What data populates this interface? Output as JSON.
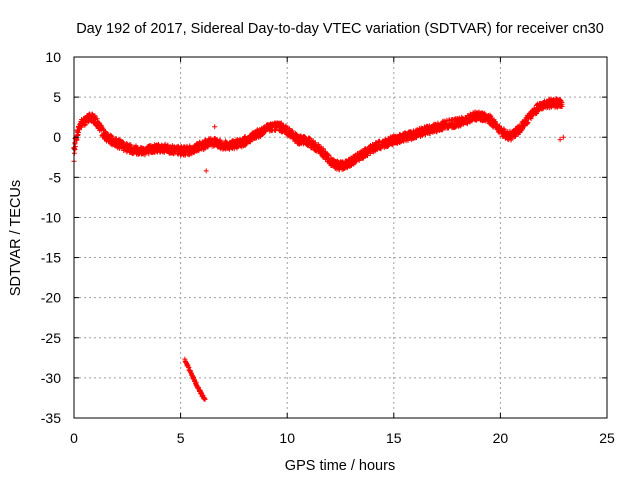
{
  "chart_data": {
    "type": "scatter",
    "title": "Day 192 of 2017, Sidereal Day-to-day VTEC variation (SDTVAR) for receiver cn30",
    "xlabel": "GPS time / hours",
    "ylabel": "SDTVAR / TECUs",
    "xlim": [
      0,
      25
    ],
    "ylim": [
      -35,
      10
    ],
    "grid": true,
    "marker": "+",
    "series_color": "#ff0000",
    "x_ticks": [
      "0",
      "5",
      "10",
      "15",
      "20",
      "25"
    ],
    "y_ticks": [
      "10",
      "5",
      "0",
      "-5",
      "-10",
      "-15",
      "-20",
      "-25",
      "-30",
      "-35"
    ],
    "series": [
      {
        "name": "SDTVAR",
        "bands": [
          {
            "x": [
              0.0,
              0.15,
              0.3,
              0.45,
              0.6,
              0.75,
              0.9,
              1.0,
              1.15,
              1.3,
              1.5,
              1.75,
              2.0,
              2.25,
              2.5,
              2.75,
              3.0,
              3.25,
              3.5,
              3.75,
              4.0,
              4.25,
              4.5,
              4.75,
              5.0,
              5.25,
              5.5,
              5.75,
              6.0,
              6.25,
              6.5,
              6.75,
              7.0,
              7.25,
              7.5,
              7.75,
              8.0,
              8.25,
              8.5,
              8.75,
              9.0,
              9.25,
              9.5,
              9.75,
              10.0,
              10.25,
              10.5,
              10.75,
              11.0,
              11.25,
              11.5,
              11.75,
              12.0,
              12.25,
              12.5,
              12.75,
              13.0,
              13.25,
              13.5,
              13.75,
              14.0,
              14.25,
              14.5,
              14.75,
              15.0,
              15.25,
              15.5,
              15.75,
              16.0,
              16.25,
              16.5,
              16.75,
              17.0,
              17.25,
              17.5,
              17.75,
              18.0,
              18.25,
              18.5,
              18.75,
              19.0,
              19.25,
              19.5,
              19.75,
              20.0,
              20.25,
              20.5,
              20.75,
              21.0,
              21.25,
              21.5,
              21.75,
              22.0,
              22.25,
              22.5,
              22.75,
              22.9
            ],
            "y": [
              -1.5,
              0.5,
              1.6,
              1.9,
              2.2,
              2.5,
              2.4,
              2.1,
              1.5,
              0.8,
              0.1,
              -0.4,
              -0.7,
              -1.0,
              -1.3,
              -1.5,
              -1.6,
              -1.7,
              -1.6,
              -1.4,
              -1.3,
              -1.4,
              -1.5,
              -1.6,
              -1.7,
              -1.7,
              -1.6,
              -1.2,
              -1.1,
              -0.7,
              -0.6,
              -0.8,
              -1.0,
              -1.0,
              -0.9,
              -0.8,
              -0.5,
              -0.2,
              0.2,
              0.6,
              1.0,
              1.3,
              1.4,
              1.2,
              0.8,
              0.2,
              -0.3,
              -0.4,
              -0.6,
              -1.0,
              -1.5,
              -2.1,
              -2.9,
              -3.4,
              -3.6,
              -3.4,
              -3.0,
              -2.6,
              -2.2,
              -1.8,
              -1.4,
              -1.1,
              -0.8,
              -0.6,
              -0.4,
              -0.2,
              0.0,
              0.2,
              0.4,
              0.6,
              0.8,
              1.0,
              1.2,
              1.4,
              1.6,
              1.7,
              1.8,
              2.0,
              2.3,
              2.6,
              2.7,
              2.5,
              2.2,
              1.6,
              0.9,
              0.3,
              0.2,
              0.6,
              1.3,
              2.2,
              3.0,
              3.6,
              4.0,
              4.2,
              4.3,
              4.2,
              4.0
            ],
            "spread": 1.1
          },
          {
            "x": [
              5.2,
              5.35,
              5.5,
              5.65,
              5.8,
              5.95,
              6.1,
              6.15
            ],
            "y": [
              -27.8,
              -28.6,
              -29.5,
              -30.3,
              -31.1,
              -31.9,
              -32.5,
              -32.7
            ],
            "spread": 0.3
          }
        ],
        "outliers": [
          {
            "x": 0.0,
            "y": -3.0
          },
          {
            "x": 0.02,
            "y": -2.0
          },
          {
            "x": 6.2,
            "y": -4.2
          },
          {
            "x": 6.6,
            "y": 1.3
          },
          {
            "x": 22.8,
            "y": -0.3
          },
          {
            "x": 22.95,
            "y": 0.0
          }
        ]
      }
    ]
  }
}
